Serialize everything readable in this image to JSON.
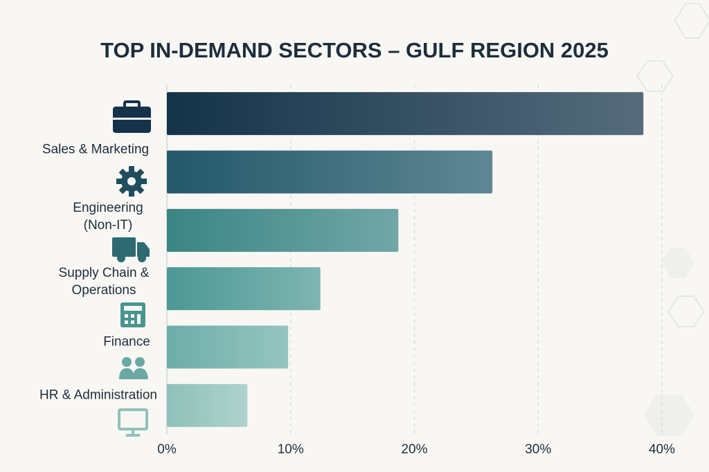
{
  "chart_data": {
    "type": "bar",
    "orientation": "horizontal",
    "title": "TOP IN-DEMAND SECTORS – GULF REGION 2025",
    "categories": [
      "Sales & Marketing",
      "Engineering (Non-IT)",
      "Supply Chain & Operations",
      "Finance",
      "HR & Administration",
      null
    ],
    "values": [
      38.5,
      26.3,
      18.7,
      12.4,
      9.8,
      6.5
    ],
    "colors": [
      "#143349",
      "#22586a",
      "#3a8584",
      "#4c9894",
      "#6eaea8",
      "#8fc1ba"
    ],
    "xlim": [
      0,
      40
    ],
    "xticks": [
      {
        "value": 0,
        "label": "0%"
      },
      {
        "value": 10,
        "label": "10%"
      },
      {
        "value": 20,
        "label": "20%"
      },
      {
        "value": 30,
        "label": "30%"
      },
      {
        "value": 40,
        "label": "40%"
      }
    ],
    "grid": true
  }
}
